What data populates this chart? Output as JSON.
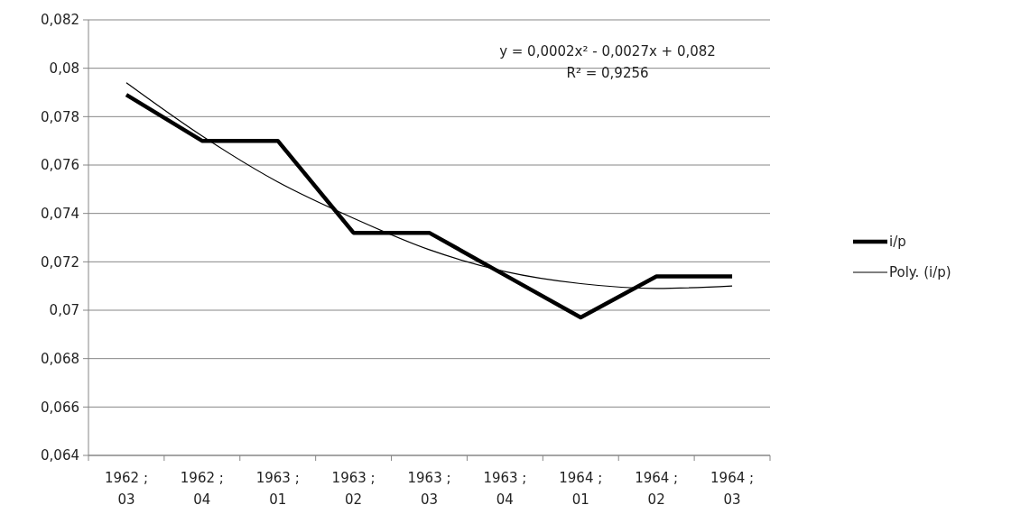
{
  "chart_data": {
    "type": "line",
    "categories": [
      "1962 ; 03",
      "1962 ; 04",
      "1963 ; 01",
      "1963 ; 02",
      "1963 ; 03",
      "1963 ; 04",
      "1964 ; 01",
      "1964 ; 02",
      "1964 ; 03"
    ],
    "series": [
      {
        "name": "i/p",
        "color": "#000000",
        "values": [
          0.0789,
          0.077,
          0.077,
          0.0732,
          0.0732,
          0.07145,
          0.0697,
          0.0714,
          0.0714
        ]
      },
      {
        "name": "Poly. (i/p)",
        "color": "#000000",
        "values": [
          0.0794,
          0.0772,
          0.0753,
          0.0738,
          0.0725,
          0.0716,
          0.0711,
          0.0709,
          0.071
        ]
      }
    ],
    "ylim": [
      0.064,
      0.082
    ],
    "yticks": [
      {
        "value": 0.064,
        "label": "0,064"
      },
      {
        "value": 0.066,
        "label": "0,066"
      },
      {
        "value": 0.068,
        "label": "0,068"
      },
      {
        "value": 0.07,
        "label": "0,07"
      },
      {
        "value": 0.072,
        "label": "0,072"
      },
      {
        "value": 0.074,
        "label": "0,074"
      },
      {
        "value": 0.076,
        "label": "0,076"
      },
      {
        "value": 0.078,
        "label": "0,078"
      },
      {
        "value": 0.08,
        "label": "0,08"
      },
      {
        "value": 0.082,
        "label": "0,082"
      }
    ],
    "grid": "y",
    "legend": "right",
    "marker": "none",
    "line_style": "solid",
    "annotations": [
      "y = 0,0002x² - 0,0027x + 0,082",
      "R² = 0,9256"
    ]
  }
}
